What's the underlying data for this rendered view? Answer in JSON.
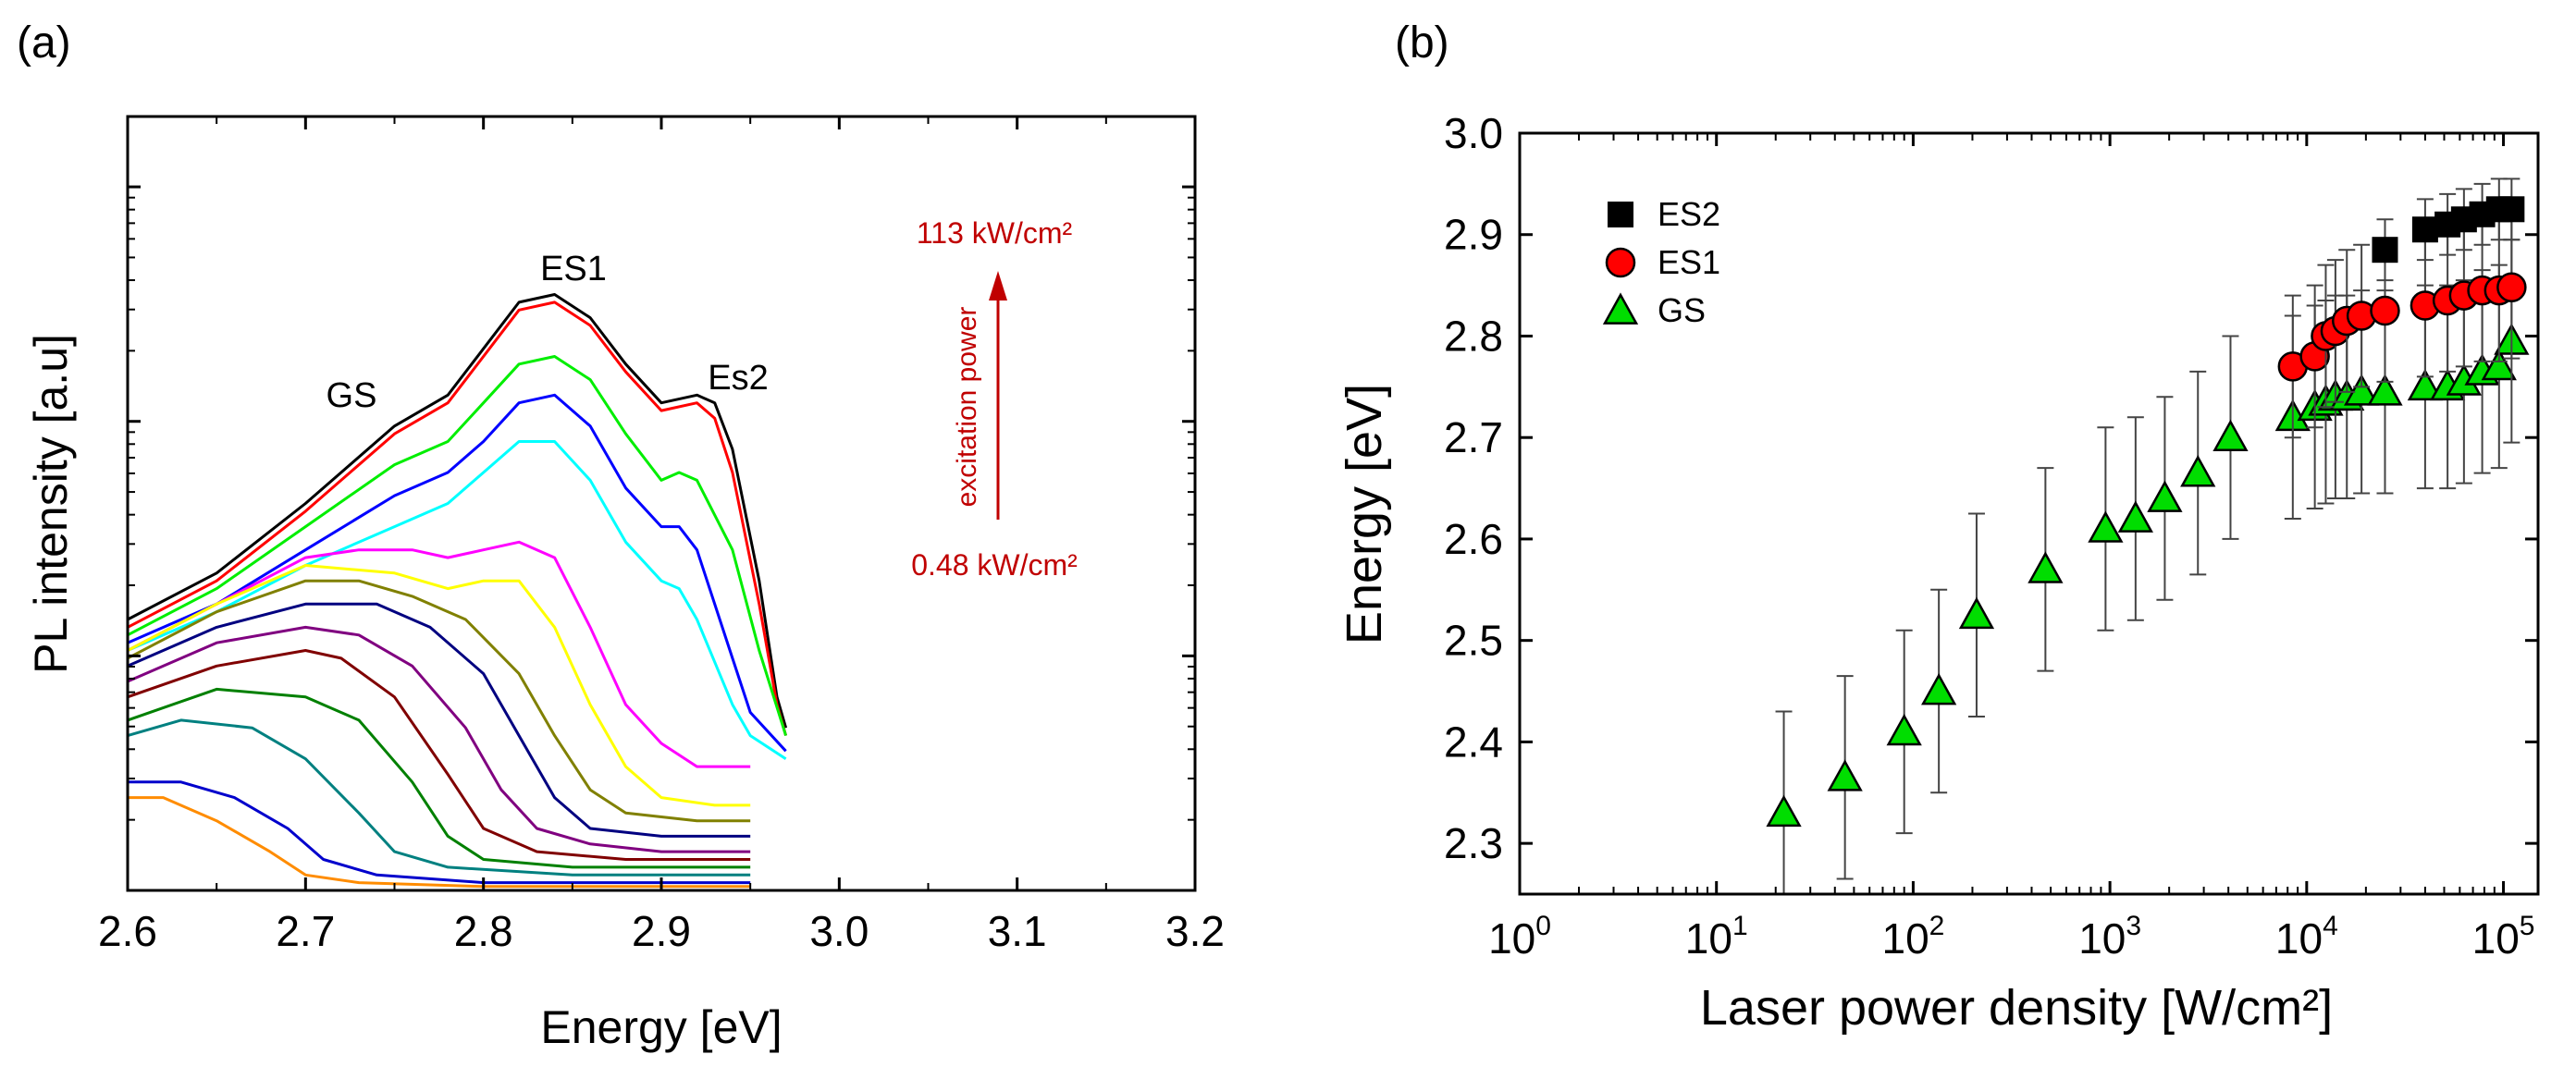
{
  "chart_data": [
    {
      "panel_label": "(a)",
      "type": "line",
      "xlabel": "Energy [eV]",
      "ylabel": "PL intensity [a.u]",
      "xlim": [
        2.6,
        3.2
      ],
      "x_ticks": [
        "2.6",
        "2.7",
        "2.8",
        "2.9",
        "3.0",
        "3.1",
        "3.2"
      ],
      "y_scale": "log",
      "y_tick_labels_shown": false,
      "legend": "none",
      "annotations": {
        "gs": "GS",
        "es1": "ES1",
        "es2": "Es2",
        "arrow_label": "excitation power",
        "high_power": "113 kW/cm²",
        "low_power": "0.48 kW/cm²"
      },
      "annotation_color": "#c00000",
      "series_note": "relative log intensity, 0 = bottom of axis, 1 = top of axis",
      "series": [
        {
          "color": "#000000",
          "points": [
            [
              2.6,
              0.35
            ],
            [
              2.65,
              0.41
            ],
            [
              2.7,
              0.5
            ],
            [
              2.75,
              0.6
            ],
            [
              2.78,
              0.64
            ],
            [
              2.8,
              0.7
            ],
            [
              2.82,
              0.76
            ],
            [
              2.84,
              0.77
            ],
            [
              2.86,
              0.74
            ],
            [
              2.88,
              0.68
            ],
            [
              2.9,
              0.63
            ],
            [
              2.92,
              0.64
            ],
            [
              2.93,
              0.63
            ],
            [
              2.94,
              0.57
            ],
            [
              2.955,
              0.4
            ],
            [
              2.965,
              0.25
            ],
            [
              2.97,
              0.21
            ]
          ]
        },
        {
          "color": "#ff0000",
          "points": [
            [
              2.6,
              0.34
            ],
            [
              2.65,
              0.4
            ],
            [
              2.7,
              0.49
            ],
            [
              2.75,
              0.59
            ],
            [
              2.78,
              0.63
            ],
            [
              2.8,
              0.69
            ],
            [
              2.82,
              0.75
            ],
            [
              2.84,
              0.76
            ],
            [
              2.86,
              0.73
            ],
            [
              2.88,
              0.67
            ],
            [
              2.9,
              0.62
            ],
            [
              2.92,
              0.63
            ],
            [
              2.93,
              0.61
            ],
            [
              2.94,
              0.54
            ],
            [
              2.955,
              0.37
            ],
            [
              2.965,
              0.24
            ],
            [
              2.97,
              0.2
            ]
          ]
        },
        {
          "color": "#00ee00",
          "points": [
            [
              2.6,
              0.33
            ],
            [
              2.65,
              0.39
            ],
            [
              2.7,
              0.47
            ],
            [
              2.75,
              0.55
            ],
            [
              2.78,
              0.58
            ],
            [
              2.8,
              0.63
            ],
            [
              2.82,
              0.68
            ],
            [
              2.84,
              0.69
            ],
            [
              2.86,
              0.66
            ],
            [
              2.88,
              0.59
            ],
            [
              2.9,
              0.53
            ],
            [
              2.91,
              0.54
            ],
            [
              2.92,
              0.53
            ],
            [
              2.94,
              0.44
            ],
            [
              2.955,
              0.31
            ],
            [
              2.97,
              0.2
            ]
          ]
        },
        {
          "color": "#0000ff",
          "points": [
            [
              2.6,
              0.32
            ],
            [
              2.65,
              0.37
            ],
            [
              2.7,
              0.44
            ],
            [
              2.75,
              0.51
            ],
            [
              2.78,
              0.54
            ],
            [
              2.8,
              0.58
            ],
            [
              2.82,
              0.63
            ],
            [
              2.84,
              0.64
            ],
            [
              2.86,
              0.6
            ],
            [
              2.88,
              0.52
            ],
            [
              2.9,
              0.47
            ],
            [
              2.91,
              0.47
            ],
            [
              2.92,
              0.44
            ],
            [
              2.94,
              0.3
            ],
            [
              2.95,
              0.23
            ],
            [
              2.97,
              0.18
            ]
          ]
        },
        {
          "color": "#00ffff",
          "points": [
            [
              2.6,
              0.31
            ],
            [
              2.65,
              0.36
            ],
            [
              2.7,
              0.42
            ],
            [
              2.75,
              0.47
            ],
            [
              2.78,
              0.5
            ],
            [
              2.8,
              0.54
            ],
            [
              2.82,
              0.58
            ],
            [
              2.84,
              0.58
            ],
            [
              2.86,
              0.53
            ],
            [
              2.88,
              0.45
            ],
            [
              2.9,
              0.4
            ],
            [
              2.91,
              0.39
            ],
            [
              2.92,
              0.35
            ],
            [
              2.94,
              0.24
            ],
            [
              2.95,
              0.2
            ],
            [
              2.97,
              0.17
            ]
          ]
        },
        {
          "color": "#ff00ff",
          "points": [
            [
              2.6,
              0.31
            ],
            [
              2.65,
              0.37
            ],
            [
              2.7,
              0.43
            ],
            [
              2.73,
              0.44
            ],
            [
              2.76,
              0.44
            ],
            [
              2.78,
              0.43
            ],
            [
              2.8,
              0.44
            ],
            [
              2.82,
              0.45
            ],
            [
              2.84,
              0.43
            ],
            [
              2.86,
              0.34
            ],
            [
              2.88,
              0.24
            ],
            [
              2.9,
              0.19
            ],
            [
              2.92,
              0.16
            ],
            [
              2.95,
              0.16
            ]
          ]
        },
        {
          "color": "#ffff00",
          "points": [
            [
              2.6,
              0.31
            ],
            [
              2.65,
              0.37
            ],
            [
              2.7,
              0.42
            ],
            [
              2.75,
              0.41
            ],
            [
              2.78,
              0.39
            ],
            [
              2.8,
              0.4
            ],
            [
              2.82,
              0.4
            ],
            [
              2.84,
              0.34
            ],
            [
              2.86,
              0.24
            ],
            [
              2.88,
              0.16
            ],
            [
              2.9,
              0.12
            ],
            [
              2.93,
              0.11
            ],
            [
              2.95,
              0.11
            ]
          ]
        },
        {
          "color": "#808000",
          "points": [
            [
              2.6,
              0.3
            ],
            [
              2.65,
              0.36
            ],
            [
              2.7,
              0.4
            ],
            [
              2.73,
              0.4
            ],
            [
              2.76,
              0.38
            ],
            [
              2.79,
              0.35
            ],
            [
              2.82,
              0.28
            ],
            [
              2.84,
              0.2
            ],
            [
              2.86,
              0.13
            ],
            [
              2.88,
              0.1
            ],
            [
              2.92,
              0.09
            ],
            [
              2.95,
              0.09
            ]
          ]
        },
        {
          "color": "#000080",
          "points": [
            [
              2.6,
              0.29
            ],
            [
              2.65,
              0.34
            ],
            [
              2.7,
              0.37
            ],
            [
              2.74,
              0.37
            ],
            [
              2.77,
              0.34
            ],
            [
              2.8,
              0.28
            ],
            [
              2.82,
              0.2
            ],
            [
              2.84,
              0.12
            ],
            [
              2.86,
              0.08
            ],
            [
              2.9,
              0.07
            ],
            [
              2.95,
              0.07
            ]
          ]
        },
        {
          "color": "#800080",
          "points": [
            [
              2.6,
              0.27
            ],
            [
              2.65,
              0.32
            ],
            [
              2.7,
              0.34
            ],
            [
              2.73,
              0.33
            ],
            [
              2.76,
              0.29
            ],
            [
              2.79,
              0.21
            ],
            [
              2.81,
              0.13
            ],
            [
              2.83,
              0.08
            ],
            [
              2.86,
              0.06
            ],
            [
              2.9,
              0.05
            ],
            [
              2.95,
              0.05
            ]
          ]
        },
        {
          "color": "#800000",
          "points": [
            [
              2.6,
              0.25
            ],
            [
              2.65,
              0.29
            ],
            [
              2.7,
              0.31
            ],
            [
              2.72,
              0.3
            ],
            [
              2.75,
              0.25
            ],
            [
              2.78,
              0.15
            ],
            [
              2.8,
              0.08
            ],
            [
              2.83,
              0.05
            ],
            [
              2.88,
              0.04
            ],
            [
              2.95,
              0.04
            ]
          ]
        },
        {
          "color": "#008000",
          "points": [
            [
              2.6,
              0.22
            ],
            [
              2.65,
              0.26
            ],
            [
              2.7,
              0.25
            ],
            [
              2.73,
              0.22
            ],
            [
              2.76,
              0.14
            ],
            [
              2.78,
              0.07
            ],
            [
              2.8,
              0.04
            ],
            [
              2.85,
              0.03
            ],
            [
              2.95,
              0.03
            ]
          ]
        },
        {
          "color": "#008080",
          "points": [
            [
              2.6,
              0.2
            ],
            [
              2.63,
              0.22
            ],
            [
              2.67,
              0.21
            ],
            [
              2.7,
              0.17
            ],
            [
              2.73,
              0.1
            ],
            [
              2.75,
              0.05
            ],
            [
              2.78,
              0.03
            ],
            [
              2.85,
              0.02
            ],
            [
              2.95,
              0.02
            ]
          ]
        },
        {
          "color": "#0000cc",
          "points": [
            [
              2.6,
              0.14
            ],
            [
              2.63,
              0.14
            ],
            [
              2.66,
              0.12
            ],
            [
              2.69,
              0.08
            ],
            [
              2.71,
              0.04
            ],
            [
              2.74,
              0.02
            ],
            [
              2.8,
              0.01
            ],
            [
              2.95,
              0.01
            ]
          ]
        },
        {
          "color": "#ff8c00",
          "points": [
            [
              2.6,
              0.12
            ],
            [
              2.62,
              0.12
            ],
            [
              2.65,
              0.09
            ],
            [
              2.68,
              0.05
            ],
            [
              2.7,
              0.02
            ],
            [
              2.73,
              0.01
            ],
            [
              2.8,
              0.005
            ],
            [
              2.95,
              0.005
            ]
          ]
        }
      ]
    },
    {
      "panel_label": "(b)",
      "type": "scatter",
      "xlabel": "Laser power density [W/cm²]",
      "ylabel": "Energy [eV]",
      "x_scale": "log",
      "xlim": [
        1,
        150000
      ],
      "ylim": [
        2.25,
        3.0
      ],
      "x_ticks": [
        {
          "value": 1,
          "base": "10",
          "exp": "0"
        },
        {
          "value": 10,
          "base": "10",
          "exp": "1"
        },
        {
          "value": 100,
          "base": "10",
          "exp": "2"
        },
        {
          "value": 1000,
          "base": "10",
          "exp": "3"
        },
        {
          "value": 10000,
          "base": "10",
          "exp": "4"
        },
        {
          "value": 100000,
          "base": "10",
          "exp": "5"
        }
      ],
      "y_ticks": [
        "2.3",
        "2.4",
        "2.5",
        "2.6",
        "2.7",
        "2.8",
        "2.9",
        "3.0"
      ],
      "legend": "top-left",
      "series": [
        {
          "name": "ES2",
          "marker": "square",
          "color": "#000000",
          "points": [
            [
              25000,
              2.885
            ],
            [
              40000,
              2.905
            ],
            [
              52000,
              2.91
            ],
            [
              63000,
              2.915
            ],
            [
              78000,
              2.92
            ],
            [
              95000,
              2.925
            ],
            [
              110000,
              2.925
            ]
          ],
          "error": 0.03
        },
        {
          "name": "ES1",
          "marker": "circle",
          "color": "#ff0000",
          "points": [
            [
              8500,
              2.77
            ],
            [
              11000,
              2.78
            ],
            [
              12500,
              2.8
            ],
            [
              14000,
              2.805
            ],
            [
              16000,
              2.815
            ],
            [
              19000,
              2.82
            ],
            [
              25000,
              2.825
            ],
            [
              40000,
              2.83
            ],
            [
              52000,
              2.835
            ],
            [
              63000,
              2.84
            ],
            [
              78000,
              2.845
            ],
            [
              95000,
              2.845
            ],
            [
              110000,
              2.848
            ]
          ],
          "error": 0.07
        },
        {
          "name": "GS",
          "marker": "triangle",
          "color": "#00dd00",
          "points": [
            [
              22,
              2.33
            ],
            [
              45,
              2.365
            ],
            [
              90,
              2.41
            ],
            [
              135,
              2.45
            ],
            [
              210,
              2.525
            ],
            [
              470,
              2.57
            ],
            [
              950,
              2.61
            ],
            [
              1350,
              2.62
            ],
            [
              1900,
              2.64
            ],
            [
              2800,
              2.665
            ],
            [
              4100,
              2.7
            ],
            [
              8500,
              2.72
            ],
            [
              11000,
              2.73
            ],
            [
              12500,
              2.735
            ],
            [
              14000,
              2.74
            ],
            [
              16000,
              2.74
            ],
            [
              19000,
              2.745
            ],
            [
              25000,
              2.745
            ],
            [
              40000,
              2.75
            ],
            [
              52000,
              2.75
            ],
            [
              63000,
              2.755
            ],
            [
              78000,
              2.765
            ],
            [
              95000,
              2.77
            ],
            [
              110000,
              2.795
            ]
          ],
          "error": 0.1
        }
      ]
    }
  ]
}
